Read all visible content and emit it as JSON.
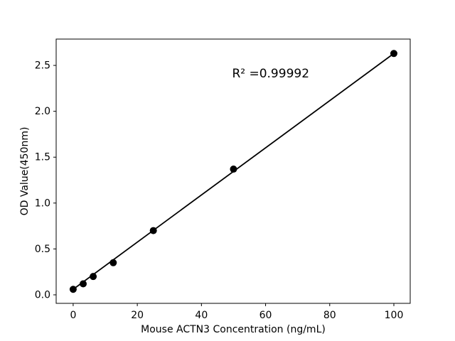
{
  "figure": {
    "background": "#ffffff",
    "frame_color": "#000000"
  },
  "chart_data": {
    "type": "scatter",
    "title": "",
    "xlabel": "Mouse ACTN3 Concentration (ng/mL)",
    "ylabel": "OD Value(450nm)",
    "series": [
      {
        "name": "standards",
        "x": [
          0,
          3.125,
          6.25,
          12.5,
          25,
          50,
          100
        ],
        "y": [
          0.06,
          0.12,
          0.2,
          0.35,
          0.7,
          1.37,
          2.63
        ]
      }
    ],
    "fit_line": {
      "x1": 0,
      "y1": 0.06,
      "x2": 100,
      "y2": 2.63
    },
    "annotation": {
      "text": "R² =0.99992",
      "x": 50,
      "y": 2.37
    },
    "x_ticks": {
      "values": [
        0,
        20,
        40,
        60,
        80,
        100
      ],
      "labels": [
        "0",
        "20",
        "40",
        "60",
        "80",
        "100"
      ]
    },
    "y_ticks": {
      "values": [
        0,
        0.5,
        1,
        1.5,
        2,
        2.5
      ],
      "labels": [
        "0.0",
        "0.5",
        "1.0",
        "1.5",
        "2.0",
        "2.5"
      ]
    },
    "xlim": [
      -5.3,
      105.1
    ],
    "ylim": [
      -0.093,
      2.787
    ],
    "grid": false,
    "legend": null,
    "marker_color": "#000000",
    "line_color": "#000000"
  }
}
